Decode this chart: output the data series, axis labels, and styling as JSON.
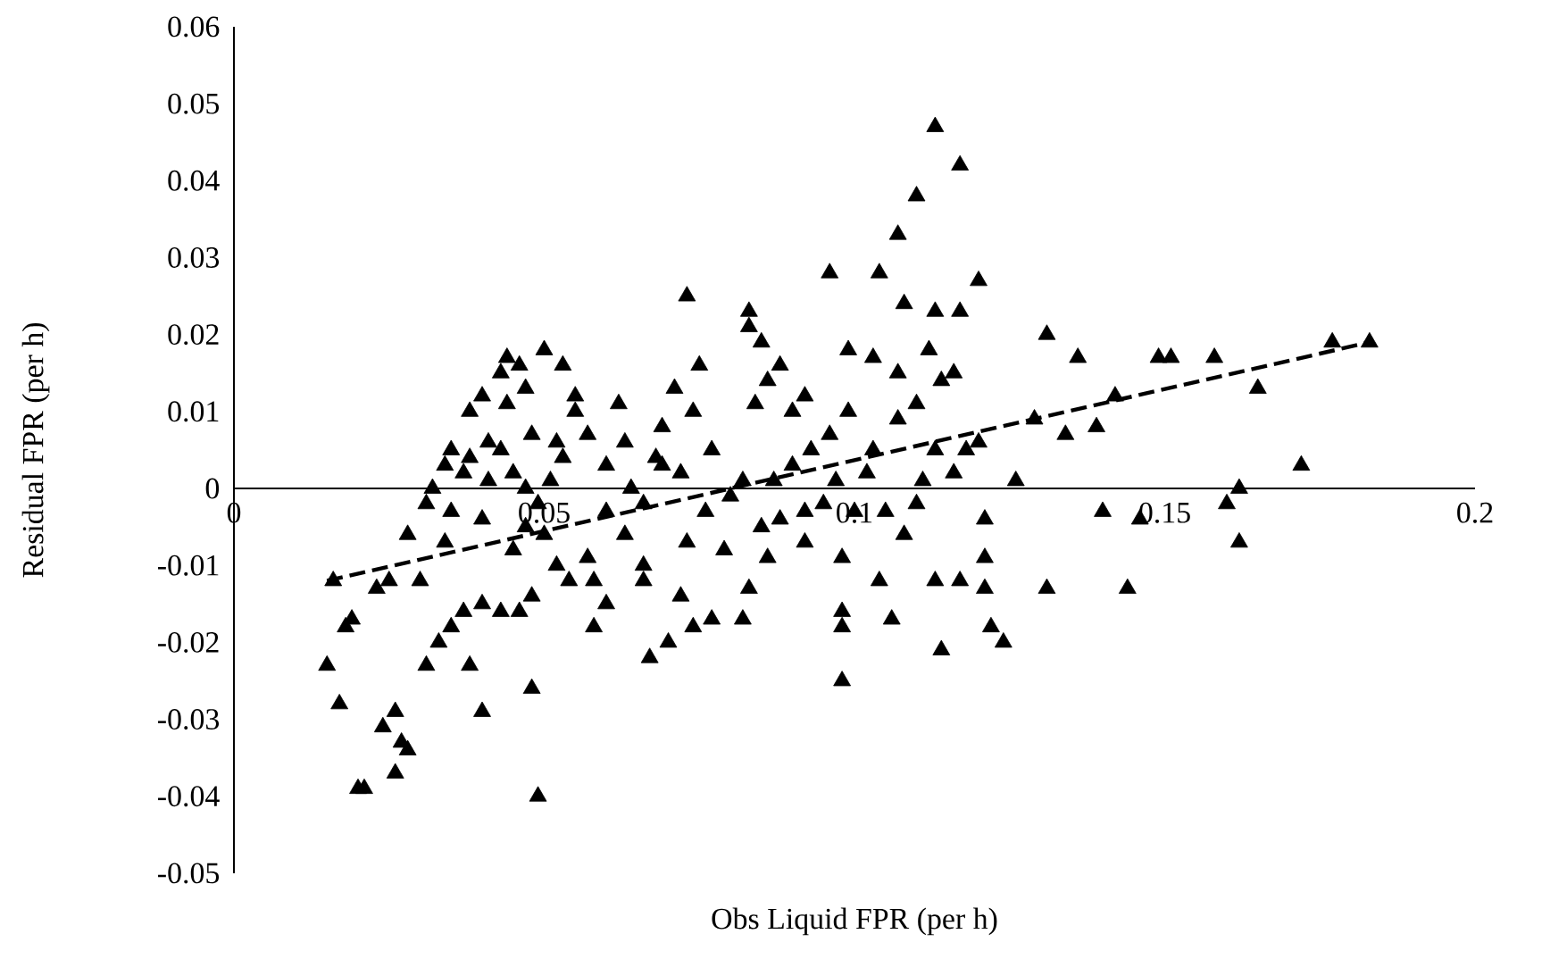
{
  "chart_data": {
    "type": "scatter",
    "xlabel": "Obs Liquid FPR (per h)",
    "ylabel": "Residual FPR (per h)",
    "xlim": [
      0,
      0.2
    ],
    "ylim": [
      -0.05,
      0.06
    ],
    "xticks": [
      0,
      0.05,
      0.1,
      0.15,
      0.2
    ],
    "yticks": [
      -0.05,
      -0.04,
      -0.03,
      -0.02,
      -0.01,
      0,
      0.01,
      0.02,
      0.03,
      0.04,
      0.05,
      0.06
    ],
    "marker": "triangle",
    "series": [
      {
        "color": "#000000",
        "x": [
          0.113,
          0.117,
          0.11,
          0.107,
          0.096,
          0.104,
          0.12,
          0.113,
          0.117,
          0.108,
          0.073,
          0.083,
          0.083,
          0.085,
          0.088,
          0.099,
          0.103,
          0.107,
          0.112,
          0.114,
          0.116,
          0.131,
          0.136,
          0.149,
          0.151,
          0.158,
          0.177,
          0.183,
          0.165,
          0.142,
          0.129,
          0.139,
          0.134,
          0.126,
          0.121,
          0.121,
          0.121,
          0.131,
          0.144,
          0.14,
          0.146,
          0.16,
          0.162,
          0.162,
          0.172,
          0.122,
          0.124,
          0.114,
          0.113,
          0.117,
          0.106,
          0.098,
          0.105,
          0.108,
          0.104,
          0.098,
          0.098,
          0.092,
          0.086,
          0.083,
          0.082,
          0.077,
          0.074,
          0.07,
          0.067,
          0.066,
          0.072,
          0.06,
          0.058,
          0.058,
          0.066,
          0.069,
          0.071,
          0.074,
          0.075,
          0.069,
          0.077,
          0.082,
          0.087,
          0.09,
          0.093,
          0.096,
          0.099,
          0.103,
          0.107,
          0.11,
          0.118,
          0.12,
          0.113,
          0.097,
          0.095,
          0.092,
          0.088,
          0.085,
          0.08,
          0.076,
          0.079,
          0.073,
          0.063,
          0.062,
          0.06,
          0.057,
          0.055,
          0.053,
          0.051,
          0.049,
          0.047,
          0.045,
          0.05,
          0.052,
          0.054,
          0.048,
          0.046,
          0.043,
          0.04,
          0.037,
          0.035,
          0.033,
          0.031,
          0.038,
          0.04,
          0.048,
          0.049,
          0.028,
          0.026,
          0.024,
          0.026,
          0.027,
          0.021,
          0.02,
          0.017,
          0.015,
          0.018,
          0.019,
          0.016,
          0.023,
          0.025,
          0.03,
          0.034,
          0.028,
          0.031,
          0.032,
          0.034,
          0.035,
          0.037,
          0.038,
          0.041,
          0.043,
          0.04,
          0.035,
          0.038,
          0.04,
          0.043,
          0.044,
          0.046,
          0.047,
          0.044,
          0.048,
          0.041,
          0.045,
          0.047,
          0.05,
          0.053,
          0.055,
          0.052,
          0.06,
          0.063,
          0.066,
          0.057,
          0.064,
          0.068,
          0.072,
          0.084,
          0.086,
          0.09,
          0.092,
          0.098,
          0.1,
          0.102,
          0.11,
          0.111,
          0.116
        ],
        "values": [
          0.047,
          0.042,
          0.038,
          0.033,
          0.028,
          0.028,
          0.027,
          0.023,
          0.023,
          0.024,
          0.025,
          0.023,
          0.021,
          0.019,
          0.016,
          0.018,
          0.017,
          0.015,
          0.018,
          0.014,
          0.015,
          0.02,
          0.017,
          0.017,
          0.017,
          0.017,
          0.019,
          0.019,
          0.013,
          0.012,
          0.009,
          0.008,
          0.007,
          0.001,
          -0.004,
          -0.009,
          -0.013,
          -0.013,
          -0.013,
          -0.003,
          -0.004,
          -0.002,
          0.0,
          -0.007,
          0.003,
          -0.018,
          -0.02,
          -0.021,
          -0.012,
          -0.012,
          -0.017,
          -0.025,
          -0.003,
          -0.006,
          -0.012,
          -0.018,
          -0.016,
          -0.007,
          -0.009,
          -0.013,
          -0.017,
          -0.017,
          -0.018,
          -0.02,
          -0.022,
          -0.012,
          -0.014,
          -0.015,
          -0.012,
          -0.018,
          -0.002,
          0.008,
          0.013,
          0.01,
          0.016,
          0.003,
          0.005,
          0.001,
          0.001,
          0.003,
          0.005,
          0.007,
          0.01,
          0.005,
          0.009,
          0.011,
          0.005,
          0.006,
          0.005,
          0.001,
          -0.002,
          -0.003,
          -0.004,
          -0.005,
          -0.001,
          -0.003,
          -0.008,
          -0.007,
          0.006,
          0.011,
          0.003,
          0.007,
          0.01,
          0.004,
          0.001,
          -0.002,
          -0.005,
          -0.008,
          -0.006,
          -0.01,
          -0.012,
          -0.014,
          -0.016,
          -0.016,
          -0.015,
          -0.016,
          -0.018,
          -0.02,
          -0.023,
          -0.023,
          -0.029,
          -0.026,
          -0.04,
          -0.034,
          -0.029,
          -0.031,
          -0.037,
          -0.033,
          -0.039,
          -0.039,
          -0.028,
          -0.023,
          -0.018,
          -0.017,
          -0.012,
          -0.013,
          -0.012,
          -0.012,
          -0.007,
          -0.006,
          -0.002,
          0.0,
          0.003,
          0.005,
          0.002,
          0.004,
          0.001,
          0.005,
          -0.004,
          -0.003,
          0.01,
          0.012,
          0.015,
          0.017,
          0.016,
          0.013,
          0.011,
          0.007,
          0.006,
          0.002,
          0.0,
          0.018,
          0.016,
          0.012,
          0.006,
          -0.003,
          -0.006,
          -0.01,
          -0.009,
          0.0,
          0.004,
          0.002,
          0.011,
          0.014,
          0.01,
          0.012,
          -0.009,
          -0.003,
          0.002,
          -0.002,
          0.001,
          0.002
        ]
      },
      {
        "type": "line",
        "color": "#000000",
        "line_style": "dashed",
        "marker": "none",
        "x": [
          0.015,
          0.183
        ],
        "values": [
          -0.012,
          0.019
        ]
      }
    ]
  }
}
